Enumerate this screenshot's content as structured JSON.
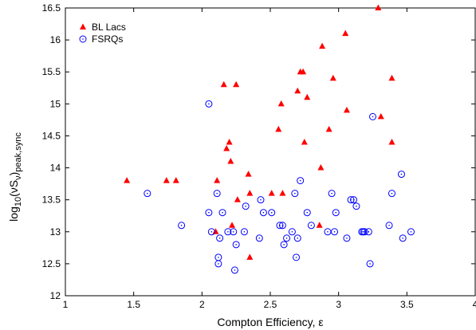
{
  "chart_data": {
    "type": "scatter",
    "xlabel": "Compton Efficiency, ε",
    "ylabel": {
      "prefix": "log",
      "base": "10",
      "open": "(",
      "nu": "ν",
      "S": "S",
      "nu_sub": "ν",
      "close": ")",
      "sub": "peak,sync"
    },
    "xlim": [
      1,
      4
    ],
    "ylim": [
      12,
      16.5
    ],
    "xticks": [
      1,
      1.5,
      2,
      2.5,
      3,
      3.5,
      4
    ],
    "yticks": [
      12,
      12.5,
      13,
      13.5,
      14,
      14.5,
      15,
      15.5,
      16,
      16.5
    ],
    "legend_position": "top-left",
    "series": [
      {
        "name": "BL Lacs",
        "marker": "filled-triangle",
        "color": "#ff0000",
        "points": [
          [
            1.45,
            13.8
          ],
          [
            1.74,
            13.8
          ],
          [
            1.81,
            13.8
          ],
          [
            2.1,
            13.0
          ],
          [
            2.11,
            13.8
          ],
          [
            2.16,
            15.3
          ],
          [
            2.18,
            14.3
          ],
          [
            2.2,
            14.4
          ],
          [
            2.21,
            14.1
          ],
          [
            2.22,
            13.1
          ],
          [
            2.25,
            15.3
          ],
          [
            2.26,
            13.5
          ],
          [
            2.34,
            13.9
          ],
          [
            2.35,
            13.6
          ],
          [
            2.35,
            12.6
          ],
          [
            2.51,
            13.6
          ],
          [
            2.56,
            14.6
          ],
          [
            2.58,
            15.0
          ],
          [
            2.59,
            13.6
          ],
          [
            2.7,
            15.2
          ],
          [
            2.72,
            15.5
          ],
          [
            2.74,
            15.5
          ],
          [
            2.75,
            14.4
          ],
          [
            2.77,
            15.1
          ],
          [
            2.86,
            13.1
          ],
          [
            2.87,
            14.0
          ],
          [
            2.88,
            15.9
          ],
          [
            2.93,
            14.6
          ],
          [
            2.96,
            15.4
          ],
          [
            3.05,
            16.1
          ],
          [
            3.06,
            14.9
          ],
          [
            3.29,
            16.5
          ],
          [
            3.31,
            14.8
          ],
          [
            3.39,
            15.4
          ],
          [
            3.39,
            14.4
          ]
        ]
      },
      {
        "name": "FSRQs",
        "marker": "open-circle",
        "color": "#0000ff",
        "points": [
          [
            1.6,
            13.6
          ],
          [
            1.85,
            13.1
          ],
          [
            2.05,
            15.0
          ],
          [
            2.05,
            13.3
          ],
          [
            2.07,
            13.0
          ],
          [
            2.11,
            13.6
          ],
          [
            2.12,
            12.6
          ],
          [
            2.12,
            12.5
          ],
          [
            2.13,
            12.9
          ],
          [
            2.15,
            13.3
          ],
          [
            2.19,
            13.0
          ],
          [
            2.23,
            13.0
          ],
          [
            2.24,
            12.4
          ],
          [
            2.25,
            12.8
          ],
          [
            2.31,
            13.0
          ],
          [
            2.32,
            13.4
          ],
          [
            2.42,
            12.9
          ],
          [
            2.43,
            13.5
          ],
          [
            2.45,
            13.3
          ],
          [
            2.51,
            13.3
          ],
          [
            2.57,
            13.1
          ],
          [
            2.59,
            13.1
          ],
          [
            2.6,
            12.8
          ],
          [
            2.62,
            12.9
          ],
          [
            2.66,
            13.0
          ],
          [
            2.68,
            13.6
          ],
          [
            2.69,
            12.6
          ],
          [
            2.7,
            12.9
          ],
          [
            2.72,
            13.8
          ],
          [
            2.77,
            13.3
          ],
          [
            2.8,
            13.1
          ],
          [
            2.92,
            13.0
          ],
          [
            2.95,
            13.6
          ],
          [
            2.97,
            13.0
          ],
          [
            2.98,
            13.3
          ],
          [
            3.06,
            12.9
          ],
          [
            3.09,
            13.5
          ],
          [
            3.11,
            13.5
          ],
          [
            3.13,
            13.4
          ],
          [
            3.17,
            13.0
          ],
          [
            3.18,
            13.0
          ],
          [
            3.19,
            13.0
          ],
          [
            3.22,
            13.0
          ],
          [
            3.23,
            12.5
          ],
          [
            3.25,
            14.8
          ],
          [
            3.37,
            13.1
          ],
          [
            3.39,
            13.6
          ],
          [
            3.46,
            13.9
          ],
          [
            3.47,
            12.9
          ],
          [
            3.53,
            13.0
          ]
        ]
      }
    ]
  }
}
